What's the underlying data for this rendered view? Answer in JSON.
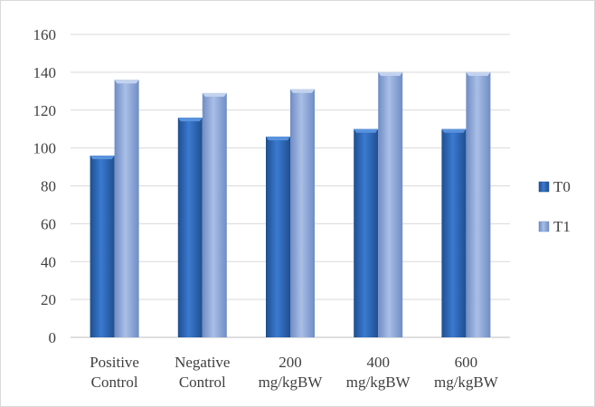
{
  "chart_data": {
    "type": "bar",
    "categories": [
      [
        "Positive",
        "Control"
      ],
      [
        "Negative",
        "Control"
      ],
      [
        "200",
        "mg/kgBW"
      ],
      [
        "400",
        "mg/kgBW"
      ],
      [
        "600",
        "mg/kgBW"
      ]
    ],
    "series": [
      {
        "name": "T0",
        "values": [
          96,
          116,
          106,
          110,
          110
        ],
        "color": "#2e6bb8"
      },
      {
        "name": "T1",
        "values": [
          136,
          129,
          131,
          140,
          140
        ],
        "color": "#8fa8d8"
      }
    ],
    "title": "",
    "xlabel": "",
    "ylabel": "",
    "ylim": [
      0,
      160
    ],
    "yticks": [
      0,
      20,
      40,
      60,
      80,
      100,
      120,
      140,
      160
    ],
    "grid": true,
    "legend": "right"
  }
}
